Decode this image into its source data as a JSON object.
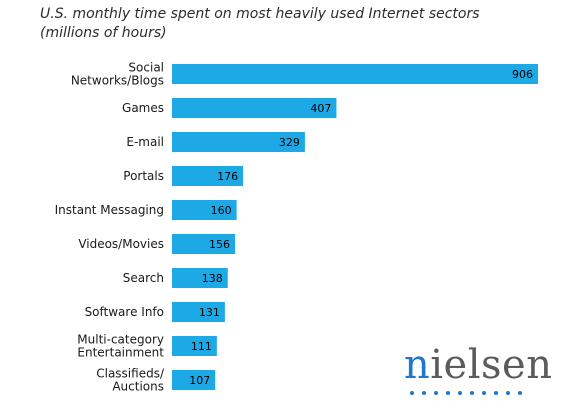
{
  "chart_data": {
    "type": "bar",
    "orientation": "horizontal",
    "title_lines": [
      "U.S. monthly time spent on most heavily used Internet sectors",
      "(millions of hours)"
    ],
    "categories": [
      [
        "Social",
        "Networks/Blogs"
      ],
      [
        "Games"
      ],
      [
        "E-mail"
      ],
      [
        "Portals"
      ],
      [
        "Instant Messaging"
      ],
      [
        "Videos/Movies"
      ],
      [
        "Search"
      ],
      [
        "Software Info"
      ],
      [
        "Multi-category",
        "Entertainment"
      ],
      [
        "Classifieds/",
        "Auctions"
      ]
    ],
    "values": [
      906,
      407,
      329,
      176,
      160,
      156,
      138,
      131,
      111,
      107
    ],
    "data_labels": [
      "906",
      "407",
      "329",
      "176",
      "160",
      "156",
      "138",
      "131",
      "111",
      "107"
    ],
    "xlim": [
      0,
      906
    ],
    "grid": false,
    "legend": "none",
    "bar_color": "#1ca9e6",
    "label_color": "#1a1a1a"
  },
  "logo": {
    "text_accent": "n",
    "text_rest": "ielsen",
    "accent_color": "#1f78c8",
    "text_color": "#5b5b5b"
  }
}
